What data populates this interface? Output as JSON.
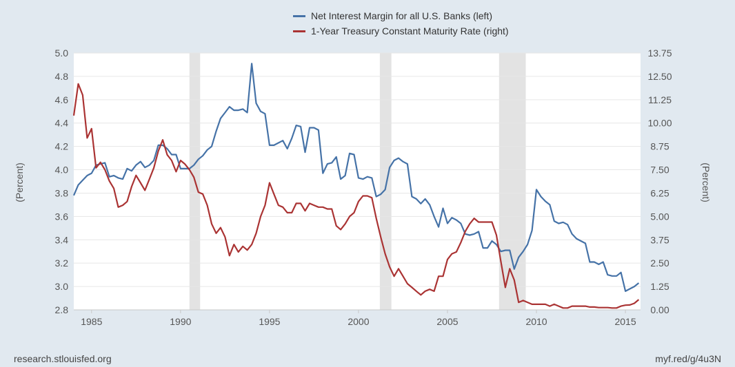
{
  "chart_data": {
    "type": "line",
    "ylabel_left": "(Percent)",
    "ylabel_right": "(Percent)",
    "xlim": [
      1984.0,
      2015.85
    ],
    "ylim_left": [
      2.8,
      5.0
    ],
    "ylim_right": [
      0.0,
      13.75
    ],
    "x_ticks": [
      1985,
      1990,
      1995,
      2000,
      2005,
      2010,
      2015
    ],
    "y_ticks_left": [
      "2.8",
      "3.0",
      "3.2",
      "3.4",
      "3.6",
      "3.8",
      "4.0",
      "4.2",
      "4.4",
      "4.6",
      "4.8",
      "5.0"
    ],
    "y_ticks_right": [
      "0.00",
      "1.25",
      "2.50",
      "3.75",
      "5.00",
      "6.25",
      "7.50",
      "8.75",
      "10.00",
      "11.25",
      "12.50",
      "13.75"
    ],
    "grid": true,
    "legend_position": "top",
    "recessions": [
      [
        1990.5,
        1991.1
      ],
      [
        2001.2,
        2001.85
      ],
      [
        2007.9,
        2009.4
      ]
    ],
    "series": [
      {
        "name": "Net Interest Margin for all U.S. Banks (left)",
        "axis": "left",
        "color": "#4572a7",
        "points": [
          [
            1984.0,
            3.78
          ],
          [
            1984.25,
            3.87
          ],
          [
            1984.5,
            3.91
          ],
          [
            1984.75,
            3.95
          ],
          [
            1985.0,
            3.97
          ],
          [
            1985.25,
            4.04
          ],
          [
            1985.5,
            4.05
          ],
          [
            1985.75,
            4.06
          ],
          [
            1986.0,
            3.94
          ],
          [
            1986.25,
            3.95
          ],
          [
            1986.5,
            3.93
          ],
          [
            1986.75,
            3.92
          ],
          [
            1987.0,
            4.01
          ],
          [
            1987.25,
            3.99
          ],
          [
            1987.5,
            4.04
          ],
          [
            1987.75,
            4.07
          ],
          [
            1988.0,
            4.02
          ],
          [
            1988.25,
            4.04
          ],
          [
            1988.5,
            4.08
          ],
          [
            1988.75,
            4.21
          ],
          [
            1989.0,
            4.21
          ],
          [
            1989.25,
            4.18
          ],
          [
            1989.5,
            4.13
          ],
          [
            1989.75,
            4.13
          ],
          [
            1990.0,
            4.01
          ],
          [
            1990.25,
            4.01
          ],
          [
            1990.5,
            4.01
          ],
          [
            1990.75,
            4.04
          ],
          [
            1991.0,
            4.09
          ],
          [
            1991.25,
            4.12
          ],
          [
            1991.5,
            4.17
          ],
          [
            1991.75,
            4.2
          ],
          [
            1992.0,
            4.33
          ],
          [
            1992.25,
            4.44
          ],
          [
            1992.5,
            4.49
          ],
          [
            1992.75,
            4.54
          ],
          [
            1993.0,
            4.51
          ],
          [
            1993.25,
            4.51
          ],
          [
            1993.5,
            4.52
          ],
          [
            1993.75,
            4.49
          ],
          [
            1994.0,
            4.91
          ],
          [
            1994.25,
            4.57
          ],
          [
            1994.5,
            4.5
          ],
          [
            1994.75,
            4.48
          ],
          [
            1995.0,
            4.21
          ],
          [
            1995.25,
            4.21
          ],
          [
            1995.5,
            4.23
          ],
          [
            1995.75,
            4.25
          ],
          [
            1996.0,
            4.18
          ],
          [
            1996.25,
            4.27
          ],
          [
            1996.5,
            4.38
          ],
          [
            1996.75,
            4.37
          ],
          [
            1997.0,
            4.15
          ],
          [
            1997.25,
            4.36
          ],
          [
            1997.5,
            4.36
          ],
          [
            1997.75,
            4.34
          ],
          [
            1998.0,
            3.97
          ],
          [
            1998.25,
            4.05
          ],
          [
            1998.5,
            4.06
          ],
          [
            1998.75,
            4.11
          ],
          [
            1999.0,
            3.92
          ],
          [
            1999.25,
            3.95
          ],
          [
            1999.5,
            4.14
          ],
          [
            1999.75,
            4.13
          ],
          [
            2000.0,
            3.93
          ],
          [
            2000.25,
            3.92
          ],
          [
            2000.5,
            3.94
          ],
          [
            2000.75,
            3.93
          ],
          [
            2001.0,
            3.77
          ],
          [
            2001.25,
            3.79
          ],
          [
            2001.5,
            3.83
          ],
          [
            2001.75,
            4.02
          ],
          [
            2002.0,
            4.08
          ],
          [
            2002.25,
            4.1
          ],
          [
            2002.5,
            4.07
          ],
          [
            2002.75,
            4.05
          ],
          [
            2003.0,
            3.77
          ],
          [
            2003.25,
            3.75
          ],
          [
            2003.5,
            3.71
          ],
          [
            2003.75,
            3.75
          ],
          [
            2004.0,
            3.7
          ],
          [
            2004.25,
            3.6
          ],
          [
            2004.5,
            3.51
          ],
          [
            2004.75,
            3.67
          ],
          [
            2005.0,
            3.54
          ],
          [
            2005.25,
            3.59
          ],
          [
            2005.5,
            3.57
          ],
          [
            2005.75,
            3.54
          ],
          [
            2006.0,
            3.45
          ],
          [
            2006.25,
            3.44
          ],
          [
            2006.5,
            3.45
          ],
          [
            2006.75,
            3.47
          ],
          [
            2007.0,
            3.33
          ],
          [
            2007.25,
            3.33
          ],
          [
            2007.5,
            3.39
          ],
          [
            2007.75,
            3.36
          ],
          [
            2008.0,
            3.3
          ],
          [
            2008.25,
            3.31
          ],
          [
            2008.5,
            3.31
          ],
          [
            2008.75,
            3.15
          ],
          [
            2009.0,
            3.25
          ],
          [
            2009.25,
            3.3
          ],
          [
            2009.5,
            3.36
          ],
          [
            2009.75,
            3.48
          ],
          [
            2010.0,
            3.83
          ],
          [
            2010.25,
            3.77
          ],
          [
            2010.5,
            3.73
          ],
          [
            2010.75,
            3.7
          ],
          [
            2011.0,
            3.56
          ],
          [
            2011.25,
            3.54
          ],
          [
            2011.5,
            3.55
          ],
          [
            2011.75,
            3.53
          ],
          [
            2012.0,
            3.45
          ],
          [
            2012.25,
            3.41
          ],
          [
            2012.5,
            3.39
          ],
          [
            2012.75,
            3.37
          ],
          [
            2013.0,
            3.21
          ],
          [
            2013.25,
            3.21
          ],
          [
            2013.5,
            3.19
          ],
          [
            2013.75,
            3.21
          ],
          [
            2014.0,
            3.1
          ],
          [
            2014.25,
            3.09
          ],
          [
            2014.5,
            3.09
          ],
          [
            2014.75,
            3.12
          ],
          [
            2015.0,
            2.96
          ],
          [
            2015.25,
            2.98
          ],
          [
            2015.5,
            3.0
          ],
          [
            2015.75,
            3.03
          ]
        ]
      },
      {
        "name": "1-Year Treasury Constant Maturity Rate (right)",
        "axis": "right",
        "color": "#aa3333",
        "points": [
          [
            1984.0,
            10.4
          ],
          [
            1984.25,
            12.1
          ],
          [
            1984.5,
            11.5
          ],
          [
            1984.75,
            9.2
          ],
          [
            1985.0,
            9.7
          ],
          [
            1985.25,
            7.6
          ],
          [
            1985.5,
            7.9
          ],
          [
            1985.75,
            7.5
          ],
          [
            1986.0,
            6.9
          ],
          [
            1986.25,
            6.5
          ],
          [
            1986.5,
            5.5
          ],
          [
            1986.75,
            5.6
          ],
          [
            1987.0,
            5.8
          ],
          [
            1987.25,
            6.6
          ],
          [
            1987.5,
            7.2
          ],
          [
            1987.75,
            6.8
          ],
          [
            1988.0,
            6.4
          ],
          [
            1988.25,
            7.0
          ],
          [
            1988.5,
            7.6
          ],
          [
            1988.75,
            8.5
          ],
          [
            1989.0,
            9.1
          ],
          [
            1989.25,
            8.3
          ],
          [
            1989.5,
            8.0
          ],
          [
            1989.75,
            7.4
          ],
          [
            1990.0,
            8.0
          ],
          [
            1990.25,
            7.8
          ],
          [
            1990.5,
            7.5
          ],
          [
            1990.75,
            7.1
          ],
          [
            1991.0,
            6.3
          ],
          [
            1991.25,
            6.2
          ],
          [
            1991.5,
            5.6
          ],
          [
            1991.75,
            4.6
          ],
          [
            1992.0,
            4.1
          ],
          [
            1992.25,
            4.4
          ],
          [
            1992.5,
            3.9
          ],
          [
            1992.75,
            2.9
          ],
          [
            1993.0,
            3.5
          ],
          [
            1993.25,
            3.1
          ],
          [
            1993.5,
            3.4
          ],
          [
            1993.75,
            3.2
          ],
          [
            1994.0,
            3.5
          ],
          [
            1994.25,
            4.1
          ],
          [
            1994.5,
            5.0
          ],
          [
            1994.75,
            5.6
          ],
          [
            1995.0,
            6.8
          ],
          [
            1995.25,
            6.2
          ],
          [
            1995.5,
            5.6
          ],
          [
            1995.75,
            5.5
          ],
          [
            1996.0,
            5.2
          ],
          [
            1996.25,
            5.2
          ],
          [
            1996.5,
            5.7
          ],
          [
            1996.75,
            5.7
          ],
          [
            1997.0,
            5.3
          ],
          [
            1997.25,
            5.7
          ],
          [
            1997.5,
            5.6
          ],
          [
            1997.75,
            5.5
          ],
          [
            1998.0,
            5.5
          ],
          [
            1998.25,
            5.4
          ],
          [
            1998.5,
            5.4
          ],
          [
            1998.75,
            4.5
          ],
          [
            1999.0,
            4.3
          ],
          [
            1999.25,
            4.6
          ],
          [
            1999.5,
            5.0
          ],
          [
            1999.75,
            5.2
          ],
          [
            2000.0,
            5.8
          ],
          [
            2000.25,
            6.1
          ],
          [
            2000.5,
            6.1
          ],
          [
            2000.75,
            6.0
          ],
          [
            2001.0,
            4.9
          ],
          [
            2001.25,
            3.9
          ],
          [
            2001.5,
            3.0
          ],
          [
            2001.75,
            2.3
          ],
          [
            2002.0,
            1.8
          ],
          [
            2002.25,
            2.2
          ],
          [
            2002.5,
            1.8
          ],
          [
            2002.75,
            1.4
          ],
          [
            2003.0,
            1.2
          ],
          [
            2003.25,
            1.0
          ],
          [
            2003.5,
            0.8
          ],
          [
            2003.75,
            1.0
          ],
          [
            2004.0,
            1.1
          ],
          [
            2004.25,
            1.0
          ],
          [
            2004.5,
            1.8
          ],
          [
            2004.75,
            1.8
          ],
          [
            2005.0,
            2.7
          ],
          [
            2005.25,
            3.0
          ],
          [
            2005.5,
            3.1
          ],
          [
            2005.75,
            3.6
          ],
          [
            2006.0,
            4.2
          ],
          [
            2006.25,
            4.6
          ],
          [
            2006.5,
            4.9
          ],
          [
            2006.75,
            4.7
          ],
          [
            2007.0,
            4.7
          ],
          [
            2007.25,
            4.7
          ],
          [
            2007.5,
            4.7
          ],
          [
            2007.75,
            4.0
          ],
          [
            2008.0,
            2.6
          ],
          [
            2008.25,
            1.2
          ],
          [
            2008.5,
            2.2
          ],
          [
            2008.75,
            1.6
          ],
          [
            2009.0,
            0.4
          ],
          [
            2009.25,
            0.5
          ],
          [
            2009.5,
            0.4
          ],
          [
            2009.75,
            0.3
          ],
          [
            2010.0,
            0.3
          ],
          [
            2010.25,
            0.3
          ],
          [
            2010.5,
            0.3
          ],
          [
            2010.75,
            0.2
          ],
          [
            2011.0,
            0.3
          ],
          [
            2011.25,
            0.2
          ],
          [
            2011.5,
            0.1
          ],
          [
            2011.75,
            0.1
          ],
          [
            2012.0,
            0.2
          ],
          [
            2012.25,
            0.2
          ],
          [
            2012.5,
            0.2
          ],
          [
            2012.75,
            0.2
          ],
          [
            2013.0,
            0.15
          ],
          [
            2013.25,
            0.15
          ],
          [
            2013.5,
            0.12
          ],
          [
            2013.75,
            0.12
          ],
          [
            2014.0,
            0.12
          ],
          [
            2014.25,
            0.1
          ],
          [
            2014.5,
            0.1
          ],
          [
            2014.75,
            0.2
          ],
          [
            2015.0,
            0.25
          ],
          [
            2015.25,
            0.26
          ],
          [
            2015.5,
            0.35
          ],
          [
            2015.75,
            0.55
          ]
        ]
      }
    ]
  },
  "footer": {
    "source": "research.stlouisfed.org",
    "link": "myf.red/g/4u3N"
  }
}
